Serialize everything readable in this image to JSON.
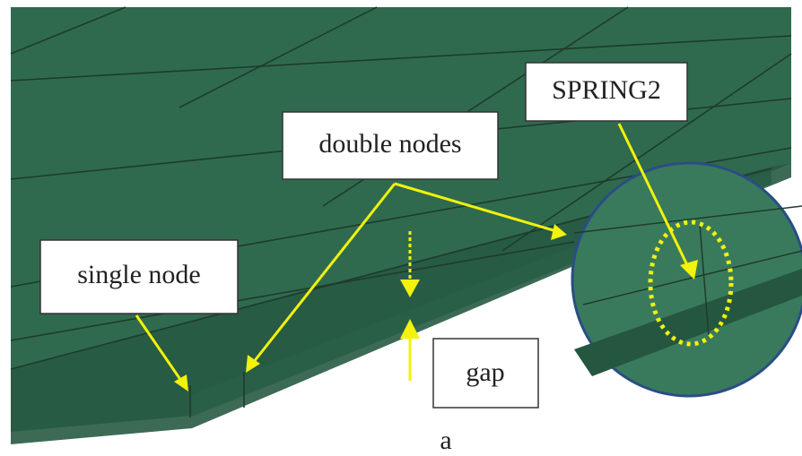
{
  "labels": {
    "spring": "SPRING2",
    "double_nodes": "double nodes",
    "single_node": "single node",
    "gap": "gap"
  },
  "caption": "a"
}
